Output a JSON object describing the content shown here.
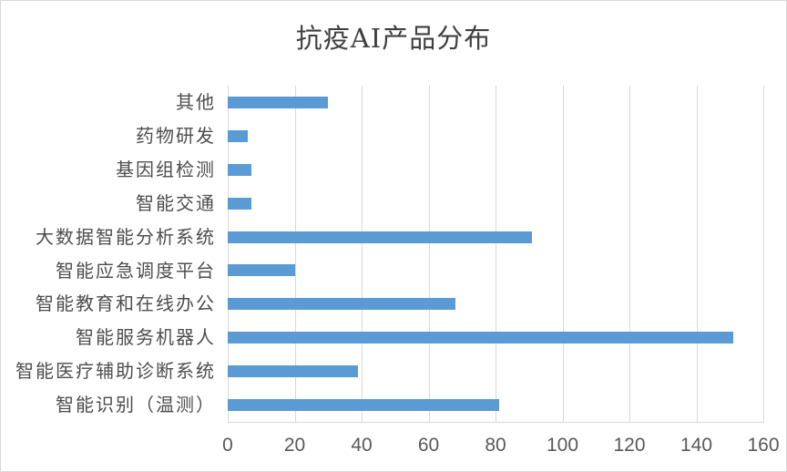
{
  "chart_data": {
    "type": "bar",
    "orientation": "horizontal",
    "title": "抗疫AI产品分布",
    "categories": [
      "其他",
      "药物研发",
      "基因组检测",
      "智能交通",
      "大数据智能分析系统",
      "智能应急调度平台",
      "智能教育和在线办公",
      "智能服务机器人",
      "智能医疗辅助诊断系统",
      "智能识别（温测）"
    ],
    "values": [
      30,
      6,
      7,
      7,
      91,
      20,
      68,
      151,
      39,
      81
    ],
    "category_order": "top-to-bottom",
    "xlabel": "",
    "ylabel": "",
    "xlim": [
      0,
      160
    ],
    "x_ticks": [
      "0",
      "20",
      "40",
      "60",
      "80",
      "100",
      "120",
      "140",
      "160"
    ],
    "grid": "vertical-only",
    "legend": "none",
    "colors": {
      "bar": "#5b9bd5",
      "gridline": "#d9d9d9",
      "axis_line": "#d9d9d9",
      "tick_label": "#595959",
      "category_label": "#4d4d4d",
      "title": "#404040",
      "background": "#ffffff",
      "frame_border": "#d9d9d9"
    }
  }
}
